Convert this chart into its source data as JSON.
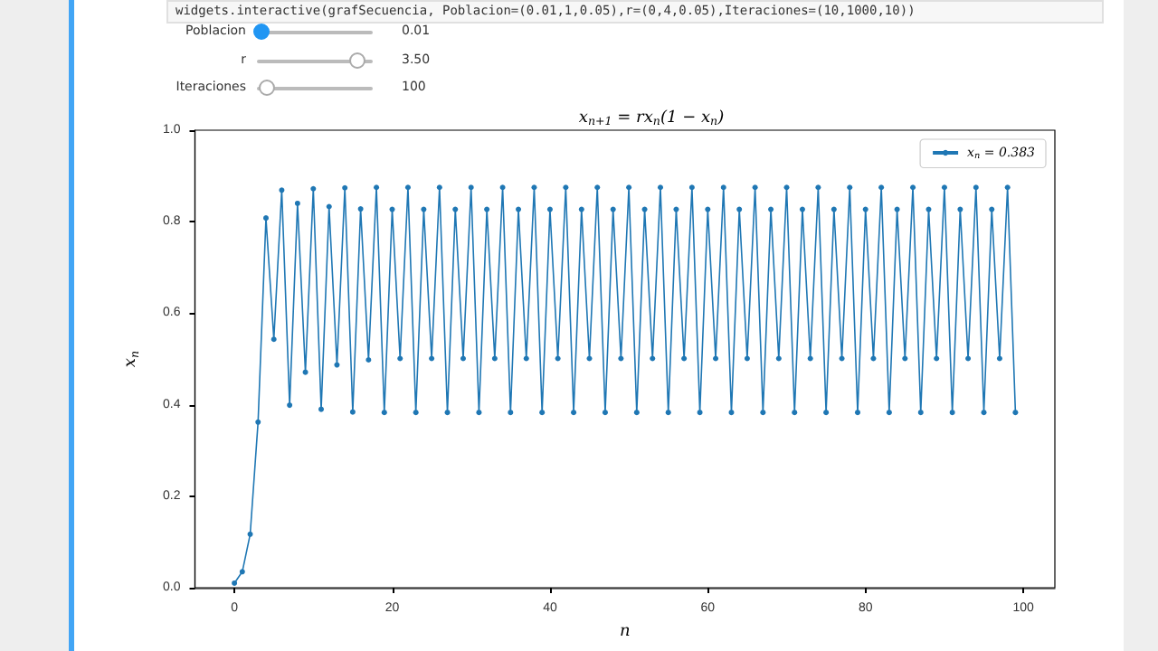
{
  "chart_data": {
    "type": "line",
    "title": "x$_{n+1}$ = rx$_{n}$(1 − x$_{n}$)",
    "xlabel": "n",
    "ylabel": "x$_{n}$",
    "annotations": [
      "widgets.interactive(grafSecuencia, Poblacion=(0.01,1,0.05),r=(0,4,0.05),Iteraciones=(10,1000,10))",
      "Poblacion",
      "0.01",
      "r",
      "3.50",
      "Iteraciones",
      "100"
    ],
    "x": [
      0,
      1,
      2,
      3,
      4,
      5,
      6,
      7,
      8,
      9,
      10,
      11,
      12,
      13,
      14,
      15,
      16,
      17,
      18,
      19,
      20,
      21,
      22,
      23,
      24,
      25,
      26,
      27,
      28,
      29,
      30,
      31,
      32,
      33,
      34,
      35,
      36,
      37,
      38,
      39,
      40,
      41,
      42,
      43,
      44,
      45,
      46,
      47,
      48,
      49,
      50,
      51,
      52,
      53,
      54,
      55,
      56,
      57,
      58,
      59,
      60,
      61,
      62,
      63,
      64,
      65,
      66,
      67,
      68,
      69,
      70,
      71,
      72,
      73,
      74,
      75,
      76,
      77,
      78,
      79,
      80,
      81,
      82,
      83,
      84,
      85,
      86,
      87,
      88,
      89,
      90,
      91,
      92,
      93,
      94,
      95,
      96,
      97,
      98,
      99
    ],
    "series": [
      {
        "name": "x$_{n}$ = 0.383",
        "color": "#1f77b4",
        "values": [
          0.01,
          0.035,
          0.117,
          0.362,
          0.808,
          0.543,
          0.869,
          0.399,
          0.84,
          0.471,
          0.872,
          0.39,
          0.833,
          0.487,
          0.874,
          0.384,
          0.828,
          0.498,
          0.875,
          0.383,
          0.827,
          0.501,
          0.875,
          0.383,
          0.827,
          0.501,
          0.875,
          0.383,
          0.827,
          0.501,
          0.875,
          0.383,
          0.827,
          0.501,
          0.875,
          0.383,
          0.827,
          0.501,
          0.875,
          0.383,
          0.827,
          0.501,
          0.875,
          0.383,
          0.827,
          0.501,
          0.875,
          0.383,
          0.827,
          0.501,
          0.875,
          0.383,
          0.827,
          0.501,
          0.875,
          0.383,
          0.827,
          0.501,
          0.875,
          0.383,
          0.827,
          0.501,
          0.875,
          0.383,
          0.827,
          0.501,
          0.875,
          0.383,
          0.827,
          0.501,
          0.875,
          0.383,
          0.827,
          0.501,
          0.875,
          0.383,
          0.827,
          0.501,
          0.875,
          0.383,
          0.827,
          0.501,
          0.875,
          0.383,
          0.827,
          0.501,
          0.875,
          0.383,
          0.827,
          0.501,
          0.875,
          0.383,
          0.827,
          0.501,
          0.875,
          0.383,
          0.827,
          0.501,
          0.875,
          0.383
        ]
      }
    ],
    "xlim": [
      -5,
      104
    ],
    "xticks": [
      0,
      20,
      40,
      60,
      80,
      100
    ],
    "ylim": [
      0,
      1
    ],
    "yticks": [
      {
        "value": 0,
        "label": "0.0"
      },
      {
        "value": 0.2,
        "label": "0.2"
      },
      {
        "value": 0.4,
        "label": "0.4"
      },
      {
        "value": 0.6,
        "label": "0.6"
      },
      {
        "value": 0.8,
        "label": "0.8"
      },
      {
        "value": 1,
        "label": "1.0"
      }
    ],
    "grid": false,
    "legend": "top right",
    "marker": "circle",
    "line_style": "solid"
  }
}
